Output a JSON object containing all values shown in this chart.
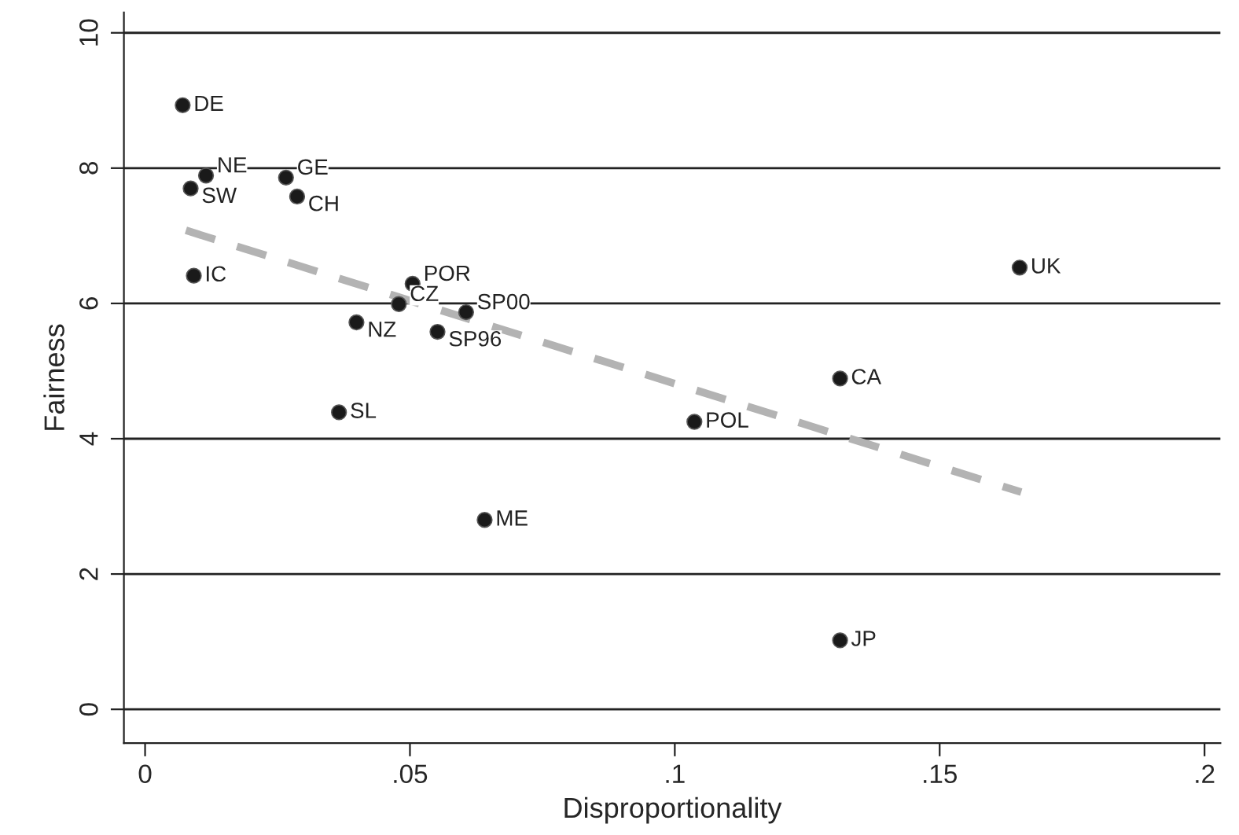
{
  "chart_data": {
    "type": "scatter",
    "xlabel": "Disproportionality",
    "ylabel": "Fairness",
    "xlim": [
      -0.004,
      0.203
    ],
    "ylim": [
      -0.5,
      10.3
    ],
    "xticks": [
      {
        "value": 0,
        "label": "0"
      },
      {
        "value": 0.05,
        "label": ".05"
      },
      {
        "value": 0.1,
        "label": ".1"
      },
      {
        "value": 0.15,
        "label": ".15"
      },
      {
        "value": 0.2,
        "label": ".2"
      }
    ],
    "yticks": [
      0,
      2,
      4,
      6,
      8,
      10
    ],
    "grid": "y",
    "series": [
      {
        "marker": "circle",
        "color": "#1a1a1a",
        "x": [
          0.0071,
          0.0115,
          0.0086,
          0.0266,
          0.0287,
          0.0092,
          0.0505,
          0.0479,
          0.0606,
          0.0399,
          0.0552,
          0.0366,
          0.1312,
          0.1037,
          0.0641,
          0.1312,
          0.1651
        ],
        "values": [
          8.93,
          7.89,
          7.7,
          7.86,
          7.58,
          6.41,
          6.29,
          5.99,
          5.87,
          5.72,
          5.58,
          4.39,
          4.89,
          4.25,
          2.8,
          1.02,
          6.53
        ]
      },
      {
        "type": "line",
        "marker": "none",
        "color": "#b3b3b3",
        "line_style": "dashed",
        "x": [
          0.0077,
          0.1654
        ],
        "values": [
          7.08,
          3.21
        ]
      }
    ],
    "annotations": [
      {
        "text": "DE",
        "x": 0.0071,
        "y": 8.93
      },
      {
        "text": "NE",
        "x": 0.0115,
        "y": 7.89
      },
      {
        "text": "SW",
        "x": 0.0086,
        "y": 7.7
      },
      {
        "text": "GE",
        "x": 0.0266,
        "y": 7.86
      },
      {
        "text": "CH",
        "x": 0.0287,
        "y": 7.58
      },
      {
        "text": "IC",
        "x": 0.0092,
        "y": 6.41
      },
      {
        "text": "POR",
        "x": 0.0505,
        "y": 6.29
      },
      {
        "text": "CZ",
        "x": 0.0479,
        "y": 5.99
      },
      {
        "text": "SP00",
        "x": 0.0606,
        "y": 5.87
      },
      {
        "text": "NZ",
        "x": 0.0399,
        "y": 5.72
      },
      {
        "text": "SP96",
        "x": 0.0552,
        "y": 5.58
      },
      {
        "text": "SL",
        "x": 0.0366,
        "y": 4.39
      },
      {
        "text": "CA",
        "x": 0.1312,
        "y": 4.89
      },
      {
        "text": "POL",
        "x": 0.1037,
        "y": 4.25
      },
      {
        "text": "ME",
        "x": 0.0641,
        "y": 2.8
      },
      {
        "text": "JP",
        "x": 0.1312,
        "y": 1.02
      },
      {
        "text": "UK",
        "x": 0.1651,
        "y": 6.53
      }
    ]
  }
}
